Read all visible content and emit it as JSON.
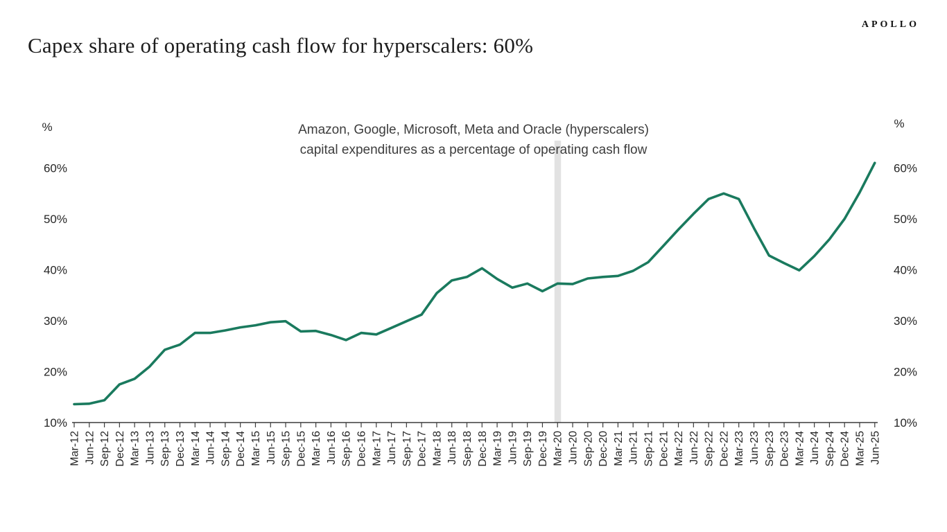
{
  "logo": "APOLLO",
  "title": "Capex share of operating cash flow for hyperscalers: 60%",
  "annotation": {
    "line1": "Amazon, Google, Microsoft, Meta and Oracle (hyperscalers)",
    "line2": "capital expenditures as a percentage of operating cash flow"
  },
  "colors": {
    "line": "#1a7a5e",
    "band": "#e2e2e2",
    "axis": "#3b3b3b",
    "label": "#262626"
  },
  "chart_data": {
    "type": "line",
    "title": "Capex share of operating cash flow for hyperscalers: 60%",
    "subtitle": "Amazon, Google, Microsoft, Meta and Oracle (hyperscalers) capital expenditures as a percentage of operating cash flow",
    "y_unit": "%",
    "ylim": [
      10,
      65
    ],
    "yticks": [
      10,
      20,
      30,
      40,
      50,
      60
    ],
    "grid": false,
    "legend": "none",
    "highlight_band_category": "Mar-20",
    "categories": [
      "Mar-12",
      "Jun-12",
      "Sep-12",
      "Dec-12",
      "Mar-13",
      "Jun-13",
      "Sep-13",
      "Dec-13",
      "Mar-14",
      "Jun-14",
      "Sep-14",
      "Dec-14",
      "Mar-15",
      "Jun-15",
      "Sep-15",
      "Dec-15",
      "Mar-16",
      "Jun-16",
      "Sep-16",
      "Dec-16",
      "Mar-17",
      "Jun-17",
      "Sep-17",
      "Dec-17",
      "Mar-18",
      "Jun-18",
      "Sep-18",
      "Dec-18",
      "Mar-19",
      "Jun-19",
      "Sep-19",
      "Dec-19",
      "Mar-20",
      "Jun-20",
      "Sep-20",
      "Dec-20",
      "Mar-21",
      "Jun-21",
      "Sep-21",
      "Dec-21",
      "Mar-22",
      "Jun-22",
      "Sep-22",
      "Dec-22",
      "Mar-23",
      "Jun-23",
      "Sep-23",
      "Dec-23",
      "Mar-24",
      "Jun-24",
      "Sep-24",
      "Dec-24",
      "Mar-25",
      "Jun-25"
    ],
    "values": [
      13.6,
      13.7,
      14.4,
      17.5,
      18.6,
      21.0,
      24.3,
      25.3,
      27.6,
      27.6,
      28.1,
      28.7,
      29.1,
      29.7,
      29.9,
      27.9,
      28.0,
      27.2,
      26.2,
      27.6,
      27.3,
      28.6,
      29.9,
      31.2,
      35.4,
      37.9,
      38.6,
      40.3,
      38.2,
      36.5,
      37.3,
      35.8,
      37.3,
      37.2,
      38.3,
      38.6,
      38.8,
      39.8,
      41.5,
      44.7,
      47.9,
      51.0,
      53.9,
      55.0,
      53.9,
      48.2,
      42.8,
      41.3,
      39.9,
      42.7,
      46.0,
      50.0,
      55.2,
      61.0
    ]
  }
}
